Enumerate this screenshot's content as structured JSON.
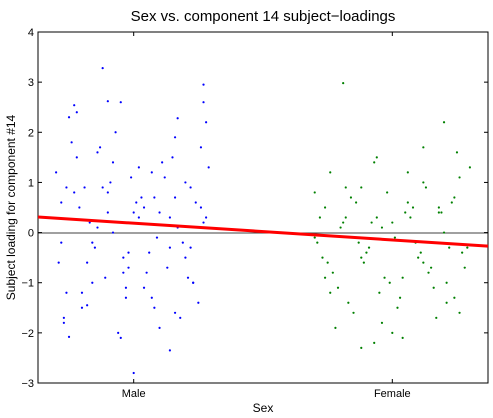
{
  "chart_data": {
    "type": "scatter",
    "title": "Sex vs. component 14 subject−loadings",
    "xlabel": "Sex",
    "ylabel": "Subject loading for component #14",
    "categories": [
      "Male",
      "Female"
    ],
    "xlim": [
      0.63,
      2.37
    ],
    "ylim": [
      -3,
      4
    ],
    "yticks": [
      "−3",
      "−2",
      "−1",
      "0",
      "1",
      "2",
      "3",
      "4"
    ],
    "ytick_values": [
      -3,
      -2,
      -1,
      0,
      1,
      2,
      3,
      4
    ],
    "zero_line": true,
    "series": [
      {
        "color": "#0000ff",
        "x": [
          0.7,
          0.72,
          0.75,
          0.78,
          0.81,
          0.84,
          0.87,
          0.9,
          0.93,
          0.96,
          0.99,
          1.02,
          1.05,
          1.08,
          1.11,
          1.14,
          1.17,
          1.2,
          1.23,
          1.26,
          1.29,
          0.71,
          0.74,
          0.77,
          0.8,
          0.83,
          0.86,
          0.89,
          0.92,
          0.95,
          0.98,
          1.01,
          1.04,
          1.07,
          1.1,
          1.13,
          1.16,
          1.19,
          1.22,
          1.25,
          1.28,
          0.73,
          0.79,
          0.85,
          0.91,
          0.97,
          1.03,
          1.09,
          1.15,
          1.21,
          1.27,
          0.76,
          0.82,
          0.88,
          0.94,
          1.0,
          1.06,
          1.12,
          1.18,
          1.24,
          0.72,
          0.78,
          0.84,
          0.9,
          0.96,
          1.02,
          1.08,
          1.14,
          1.2,
          1.26,
          0.74,
          0.8,
          0.86,
          0.92,
          0.98,
          1.04,
          1.1,
          1.16,
          1.22,
          1.28,
          0.88,
          0.9,
          0.77,
          1.17,
          1.27,
          1.27,
          1.14,
          0.95,
          0.75,
          0.73,
          1.16,
          1.0,
          0.82,
          0.97,
          1.07,
          1.23
        ],
        "y": [
          1.2,
          0.6,
          2.3,
          1.5,
          0.9,
          -0.2,
          1.7,
          0.4,
          2.0,
          -0.5,
          1.1,
          0.3,
          -0.8,
          0.7,
          1.4,
          -0.3,
          0.1,
          1.0,
          -1.0,
          0.5,
          1.3,
          -0.6,
          -1.2,
          0.8,
          -1.5,
          0.2,
          1.6,
          -0.9,
          0.0,
          2.6,
          -0.4,
          0.6,
          -1.1,
          1.2,
          0.4,
          -0.7,
          1.9,
          -0.2,
          0.9,
          -1.4,
          0.3,
          -1.8,
          0.5,
          -0.3,
          1.0,
          -1.3,
          0.7,
          -0.1,
          1.5,
          -0.9,
          0.2,
          1.8,
          -0.6,
          0.9,
          -2.0,
          0.4,
          -0.4,
          1.1,
          -1.7,
          0.6,
          -0.2,
          2.4,
          -1.0,
          0.8,
          -0.8,
          1.3,
          -1.5,
          0.3,
          -0.5,
          1.7,
          0.9,
          -1.2,
          0.1,
          1.4,
          -0.7,
          0.5,
          -1.9,
          0.7,
          -0.3,
          2.2,
          3.28,
          2.62,
          2.54,
          2.28,
          2.95,
          2.6,
          -2.35,
          -2.1,
          -2.08,
          -1.7,
          -1.6,
          -2.8,
          -1.45,
          -1.1,
          -1.3,
          -1.0
        ]
      },
      {
        "color": "#008000",
        "x": [
          1.7,
          1.73,
          1.76,
          1.79,
          1.82,
          1.85,
          1.88,
          1.91,
          1.94,
          1.97,
          2.0,
          2.03,
          2.06,
          2.09,
          2.12,
          2.15,
          2.18,
          2.21,
          2.24,
          2.27,
          2.3,
          1.71,
          1.74,
          1.77,
          1.8,
          1.83,
          1.86,
          1.89,
          1.92,
          1.95,
          1.98,
          2.01,
          2.04,
          2.07,
          2.1,
          2.13,
          2.16,
          2.19,
          2.22,
          2.25,
          2.28,
          1.72,
          1.78,
          1.84,
          1.9,
          1.96,
          2.02,
          2.08,
          2.14,
          2.2,
          2.26,
          1.75,
          1.81,
          1.87,
          1.93,
          1.99,
          2.05,
          2.11,
          2.17,
          2.23,
          2.29,
          1.7,
          1.76,
          1.82,
          1.88,
          1.94,
          2.0,
          2.06,
          2.12,
          2.18,
          2.24,
          1.81,
          1.88,
          1.96,
          2.04,
          2.12,
          2.2,
          2.26,
          1.74,
          1.93,
          2.21
        ],
        "y": [
          0.8,
          -0.5,
          1.2,
          -1.1,
          0.3,
          -1.6,
          0.9,
          -0.3,
          1.5,
          -0.9,
          0.2,
          -1.3,
          0.6,
          -0.2,
          1.0,
          -0.7,
          0.4,
          -1.0,
          0.7,
          -0.4,
          1.3,
          -0.2,
          0.5,
          -0.8,
          0.1,
          -1.4,
          0.6,
          -0.6,
          0.2,
          -1.2,
          0.8,
          -0.1,
          -0.9,
          0.3,
          -0.5,
          0.9,
          -1.1,
          0.4,
          -0.3,
          1.6,
          -0.7,
          0.3,
          -1.9,
          0.7,
          -0.4,
          0.1,
          -1.5,
          0.5,
          -0.8,
          0.0,
          1.1,
          -0.6,
          0.2,
          -0.2,
          1.4,
          -1.0,
          0.4,
          -0.4,
          -1.7,
          0.6,
          -0.3,
          -0.1,
          -1.2,
          0.9,
          -0.5,
          0.3,
          -2.0,
          1.2,
          -0.6,
          0.5,
          -1.3,
          2.98,
          -2.3,
          -1.8,
          -2.1,
          1.7,
          2.2,
          -1.6,
          -0.9,
          -2.2,
          -1.4
        ]
      }
    ],
    "trend": {
      "color": "#ff0000",
      "x": [
        0.63,
        2.37
      ],
      "y": [
        0.31,
        -0.27
      ]
    }
  }
}
